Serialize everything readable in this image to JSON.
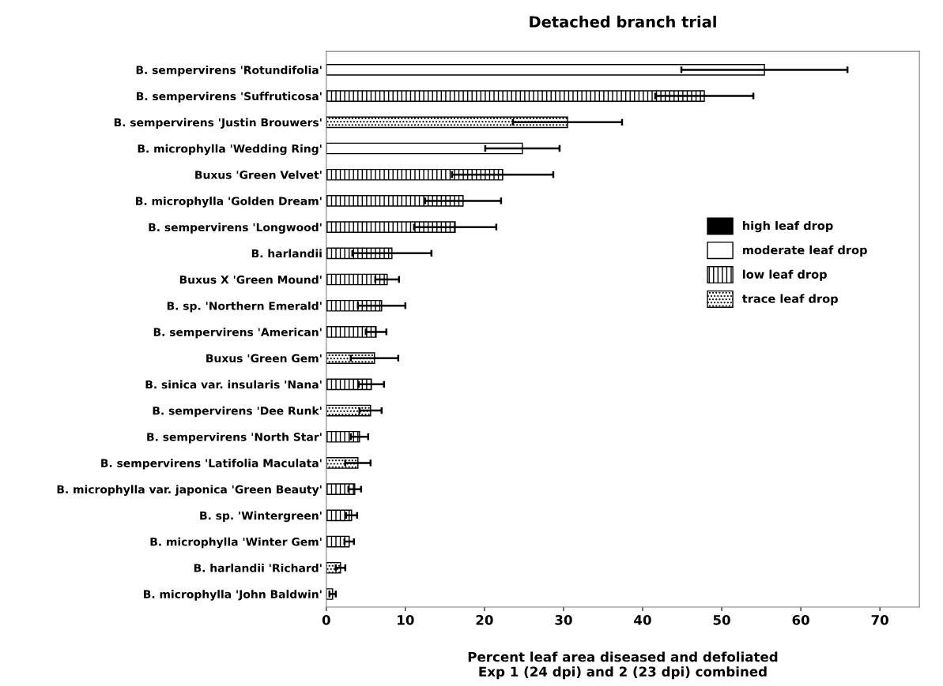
{
  "chart_data": {
    "type": "bar",
    "orientation": "horizontal",
    "title": "Detached branch trial",
    "xlabel": "Percent leaf area diseased and defoliated\nExp 1 (24 dpi) and 2 (23 dpi) combined",
    "categories": [
      "B. sempervirens 'Rotundifolia'",
      "B. sempervirens 'Suffruticosa'",
      "B. sempervirens 'Justin Brouwers'",
      "B. microphylla 'Wedding Ring'",
      "Buxus 'Green Velvet'",
      "B. microphylla 'Golden Dream'",
      "B. sempervirens 'Longwood'",
      "B. harlandii",
      "Buxus X 'Green Mound'",
      "B. sp. 'Northern Emerald'",
      "B. sempervirens 'American'",
      "Buxus 'Green Gem'",
      "B. sinica var. insularis 'Nana'",
      "B. sempervirens 'Dee Runk'",
      "B. sempervirens 'North Star'",
      "B. sempervirens 'Latifolia Maculata'",
      "B. microphylla var. japonica 'Green Beauty'",
      "B. sp. 'Wintergreen'",
      "B. microphylla 'Winter Gem'",
      "B. harlandii 'Richard'",
      "B. microphylla 'John Baldwin'"
    ],
    "series": [
      {
        "name": "high leaf drop",
        "color": "#000000",
        "values": [
          null,
          null,
          null,
          null,
          null,
          null,
          null,
          null,
          null,
          null,
          null,
          null,
          null,
          null,
          null,
          null,
          null,
          null,
          null,
          null,
          null
        ],
        "errors": [
          null,
          null,
          null,
          null,
          null,
          null,
          null,
          null,
          null,
          null,
          null,
          null,
          null,
          null,
          null,
          null,
          null,
          null,
          null,
          null,
          null
        ]
      },
      {
        "name": "moderate leaf drop",
        "color": "#ffffff",
        "values": [
          55.4,
          null,
          null,
          24.8,
          null,
          null,
          null,
          null,
          null,
          null,
          null,
          null,
          null,
          null,
          null,
          null,
          null,
          null,
          null,
          null,
          0.8
        ],
        "errors": [
          10.5,
          null,
          null,
          4.7,
          null,
          null,
          null,
          null,
          null,
          null,
          null,
          null,
          null,
          null,
          null,
          null,
          null,
          null,
          null,
          null,
          0.4
        ]
      },
      {
        "name": "low leaf drop",
        "color": "#000000",
        "values": [
          null,
          47.8,
          null,
          null,
          22.3,
          17.3,
          16.3,
          8.3,
          7.7,
          7.0,
          6.3,
          null,
          5.7,
          null,
          4.2,
          null,
          3.6,
          3.2,
          2.9,
          null,
          null
        ],
        "errors": [
          null,
          6.2,
          null,
          null,
          6.4,
          4.8,
          5.2,
          5.0,
          1.5,
          3.0,
          1.3,
          null,
          1.6,
          null,
          1.1,
          null,
          0.8,
          0.7,
          0.6,
          null,
          null
        ]
      },
      {
        "name": "trace leaf drop",
        "color": "#000000",
        "values": [
          null,
          null,
          30.5,
          null,
          null,
          null,
          null,
          null,
          null,
          null,
          null,
          6.1,
          null,
          5.6,
          null,
          4.0,
          null,
          null,
          null,
          1.8,
          null
        ],
        "errors": [
          null,
          null,
          6.9,
          null,
          null,
          null,
          null,
          null,
          null,
          null,
          null,
          3.0,
          null,
          1.4,
          null,
          1.6,
          null,
          null,
          null,
          0.6,
          null
        ]
      }
    ],
    "xlim": [
      0,
      75
    ],
    "xticks": [
      0,
      10,
      20,
      30,
      40,
      50,
      60,
      70
    ],
    "grid": false,
    "legend": "right"
  }
}
